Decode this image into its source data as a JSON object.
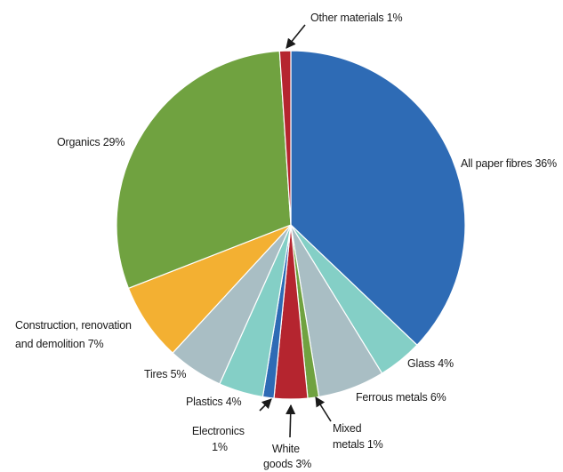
{
  "chart_data": {
    "type": "pie",
    "title": "",
    "start": "top, clockwise",
    "slices": [
      {
        "label": "All paper fibres 36%",
        "value": 36,
        "color": "#2e6bb5"
      },
      {
        "label": "Glass 4%",
        "value": 4,
        "color": "#84cfc6"
      },
      {
        "label": "Ferrous metals 6%",
        "value": 6,
        "color": "#a9bec4"
      },
      {
        "label": "Mixed metals 1%",
        "value": 1,
        "color": "#70a240"
      },
      {
        "label": "White goods 3%",
        "value": 3,
        "color": "#b5252f"
      },
      {
        "label": "Electronics 1%",
        "value": 1,
        "color": "#2e6bb5"
      },
      {
        "label": "Plastics 4%",
        "value": 4,
        "color": "#84cfc6"
      },
      {
        "label": "Tires 5%",
        "value": 5,
        "color": "#a9bec4"
      },
      {
        "label": "Construction, renovation and demolition 7%",
        "value": 7,
        "color": "#f3b032"
      },
      {
        "label": "Organics 29%",
        "value": 29,
        "color": "#70a240"
      },
      {
        "label": "Other materials 1%",
        "value": 1,
        "color": "#b5252f"
      }
    ]
  }
}
